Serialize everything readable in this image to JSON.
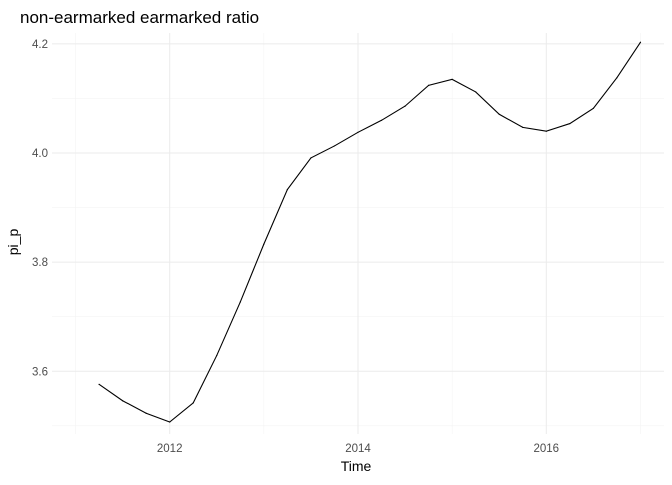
{
  "chart_data": {
    "type": "line",
    "title": "non-earmarked earmarked ratio",
    "xlabel": "Time",
    "ylabel": "pi_p",
    "xlim": [
      2010.75,
      2017.25
    ],
    "ylim": [
      3.485,
      4.22
    ],
    "x_ticks": [
      2012,
      2014,
      2016
    ],
    "x_tick_labels": [
      "2012",
      "2014",
      "2016"
    ],
    "x_minor": [
      2011,
      2013,
      2015,
      2017
    ],
    "y_ticks": [
      3.6,
      3.8,
      4.0,
      4.2
    ],
    "y_tick_labels": [
      "3.6",
      "3.8",
      "4.0",
      "4.2"
    ],
    "y_minor": [
      3.5,
      3.7,
      3.9,
      4.1
    ],
    "grid": true,
    "line_color": "#000000",
    "series": [
      {
        "x": [
          2011.25,
          2011.5,
          2011.75,
          2012.0,
          2012.25,
          2012.5,
          2012.75,
          2013.0,
          2013.25,
          2013.5,
          2013.75,
          2014.0,
          2014.25,
          2014.5,
          2014.75,
          2015.0,
          2015.25,
          2015.5,
          2015.75,
          2016.0,
          2016.25,
          2016.5,
          2016.75,
          2017.0
        ],
        "values": [
          3.576,
          3.546,
          3.523,
          3.507,
          3.542,
          3.629,
          3.727,
          3.833,
          3.933,
          3.991,
          4.013,
          4.038,
          4.06,
          4.086,
          4.124,
          4.135,
          4.112,
          4.071,
          4.047,
          4.04,
          4.054,
          4.082,
          4.138,
          4.203
        ]
      }
    ]
  }
}
